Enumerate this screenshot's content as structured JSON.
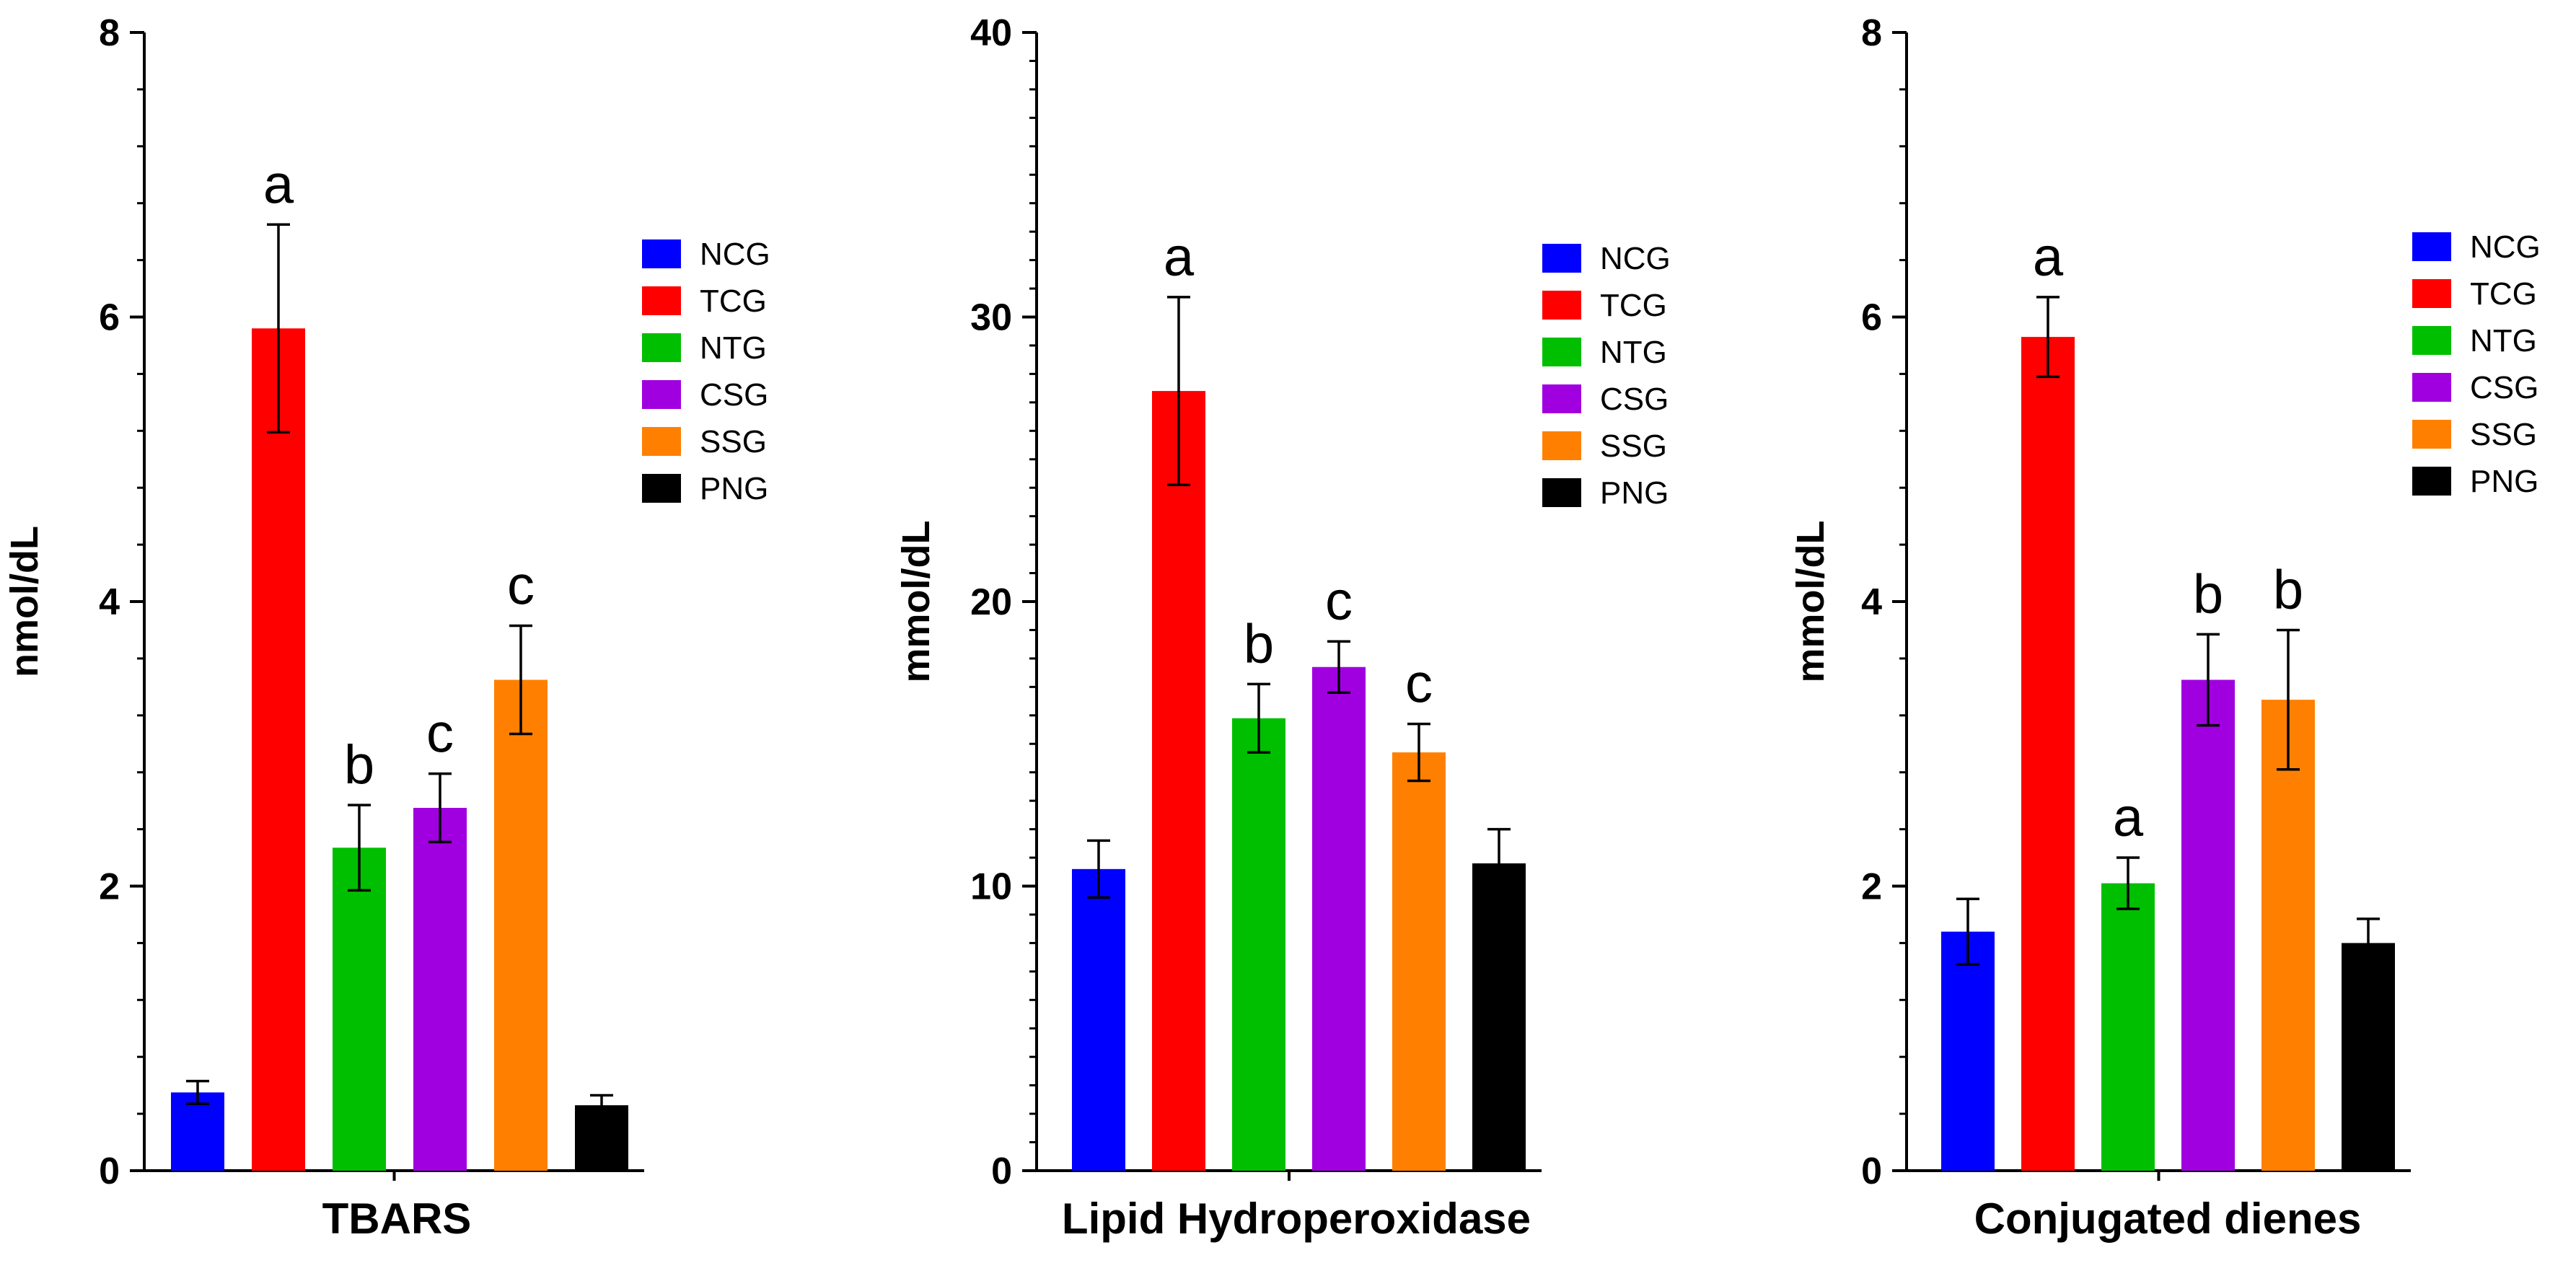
{
  "group_names": [
    "NCG",
    "TCG",
    "NTG",
    "CSG",
    "SSG",
    "PNG"
  ],
  "group_colors": [
    "#0000ff",
    "#ff0000",
    "#00bf00",
    "#a000e0",
    "#ff8000",
    "#000000"
  ],
  "chart_data": [
    {
      "type": "bar",
      "title": "",
      "xlabel": "TBARS",
      "ylabel": "nmol/dL",
      "ylim": [
        0,
        8
      ],
      "yticks": [
        0,
        2,
        4,
        6,
        8
      ],
      "minor_ticks_per_major": 4,
      "categories": [
        "NCG",
        "TCG",
        "NTG",
        "CSG",
        "SSG",
        "PNG"
      ],
      "values": [
        0.55,
        5.92,
        2.27,
        2.55,
        3.45,
        0.46
      ],
      "errors": [
        0.08,
        0.73,
        0.3,
        0.24,
        0.38,
        0.07
      ],
      "annotations": [
        "",
        "a",
        "b",
        "c",
        "c",
        ""
      ],
      "legend_position": "right"
    },
    {
      "type": "bar",
      "title": "",
      "xlabel": "Lipid Hydroperoxidase",
      "ylabel": "mmol/dL",
      "ylim": [
        0,
        40
      ],
      "yticks": [
        0,
        10,
        20,
        30,
        40
      ],
      "minor_ticks_per_major": 9,
      "categories": [
        "NCG",
        "TCG",
        "NTG",
        "CSG",
        "SSG",
        "PNG"
      ],
      "values": [
        10.6,
        27.4,
        15.9,
        17.7,
        14.7,
        10.8
      ],
      "errors": [
        1.0,
        3.3,
        1.2,
        0.9,
        1.0,
        1.2
      ],
      "annotations": [
        "",
        "a",
        "b",
        "c",
        "c",
        ""
      ],
      "legend_position": "right"
    },
    {
      "type": "bar",
      "title": "",
      "xlabel": "Conjugated dienes",
      "ylabel": "mmol/dL",
      "ylim": [
        0,
        8
      ],
      "yticks": [
        0,
        2,
        4,
        6,
        8
      ],
      "minor_ticks_per_major": 4,
      "categories": [
        "NCG",
        "TCG",
        "NTG",
        "CSG",
        "SSG",
        "PNG"
      ],
      "values": [
        1.68,
        5.86,
        2.02,
        3.45,
        3.31,
        1.6
      ],
      "errors": [
        0.23,
        0.28,
        0.18,
        0.32,
        0.49,
        0.17
      ],
      "annotations": [
        "",
        "a",
        "a",
        "b",
        "b",
        ""
      ],
      "legend_position": "right"
    }
  ]
}
